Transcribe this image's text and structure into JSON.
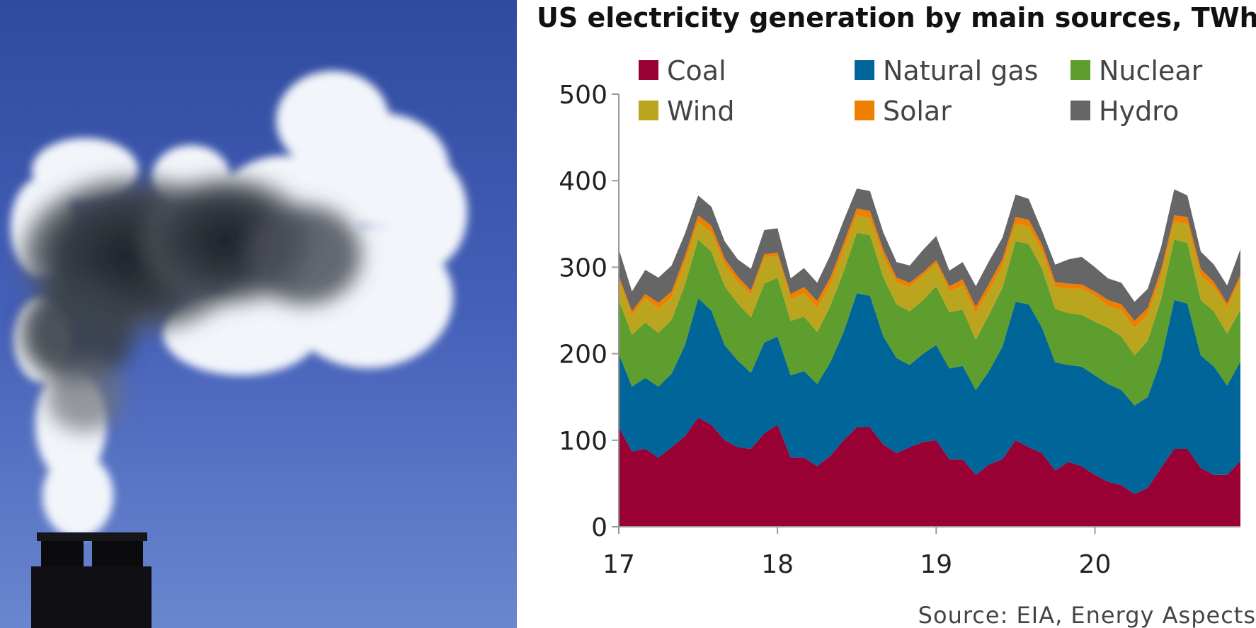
{
  "photo": {
    "icon": "smokestack-emissions-photo"
  },
  "chart_data": {
    "type": "area",
    "stacked": true,
    "title": "US electricity generation by main sources, TWh",
    "source": "Source: EIA, Energy Aspects",
    "xlabel": "",
    "ylabel": "",
    "ylim": [
      0,
      500
    ],
    "yticks": [
      0,
      100,
      200,
      300,
      400,
      500
    ],
    "xlim": [
      17,
      20.917
    ],
    "xticks": [
      {
        "value": 17,
        "label": "17"
      },
      {
        "value": 18,
        "label": "18"
      },
      {
        "value": 19,
        "label": "19"
      },
      {
        "value": 20,
        "label": "20"
      }
    ],
    "legend_position": "top",
    "x": [
      17.0,
      17.083,
      17.167,
      17.25,
      17.333,
      17.417,
      17.5,
      17.583,
      17.667,
      17.75,
      17.833,
      17.917,
      18.0,
      18.083,
      18.167,
      18.25,
      18.333,
      18.417,
      18.5,
      18.583,
      18.667,
      18.75,
      18.833,
      18.917,
      19.0,
      19.083,
      19.167,
      19.25,
      19.333,
      19.417,
      19.5,
      19.583,
      19.667,
      19.75,
      19.833,
      19.917,
      20.0,
      20.083,
      20.167,
      20.25,
      20.333,
      20.417,
      20.5,
      20.583,
      20.667,
      20.75,
      20.833,
      20.917
    ],
    "series": [
      {
        "name": "Coal",
        "color": "#990033",
        "values": [
          115,
          87,
          90,
          80,
          92,
          105,
          126,
          118,
          100,
          92,
          90,
          108,
          118,
          80,
          80,
          70,
          82,
          100,
          115,
          115,
          95,
          85,
          92,
          98,
          100,
          78,
          78,
          60,
          72,
          78,
          100,
          92,
          85,
          65,
          75,
          70,
          60,
          52,
          48,
          38,
          45,
          68,
          90,
          90,
          68,
          60,
          60,
          76
        ]
      },
      {
        "name": "Natural gas",
        "color": "#006699",
        "values": [
          85,
          75,
          82,
          82,
          85,
          105,
          138,
          132,
          110,
          100,
          88,
          105,
          102,
          95,
          100,
          95,
          108,
          125,
          155,
          152,
          125,
          110,
          95,
          102,
          110,
          105,
          108,
          98,
          108,
          130,
          160,
          165,
          145,
          125,
          112,
          115,
          115,
          113,
          110,
          102,
          105,
          125,
          172,
          168,
          130,
          125,
          103,
          115
        ]
      },
      {
        "name": "Nuclear",
        "color": "#5e9e2e",
        "values": [
          62,
          60,
          64,
          62,
          62,
          70,
          68,
          68,
          68,
          66,
          64,
          68,
          68,
          63,
          63,
          60,
          65,
          70,
          70,
          70,
          68,
          62,
          62,
          62,
          68,
          65,
          65,
          58,
          65,
          68,
          70,
          70,
          68,
          62,
          60,
          60,
          62,
          65,
          62,
          58,
          65,
          70,
          70,
          70,
          64,
          64,
          60,
          60
        ]
      },
      {
        "name": "Wind",
        "color": "#bca51e",
        "values": [
          24,
          22,
          28,
          28,
          26,
          25,
          20,
          22,
          25,
          25,
          26,
          30,
          25,
          25,
          27,
          28,
          25,
          25,
          20,
          20,
          24,
          25,
          28,
          28,
          26,
          24,
          28,
          30,
          28,
          25,
          20,
          20,
          20,
          25,
          28,
          30,
          30,
          25,
          30,
          32,
          30,
          26,
          20,
          22,
          28,
          28,
          30,
          35
        ]
      },
      {
        "name": "Solar",
        "color": "#ee7f00",
        "values": [
          4,
          5,
          5,
          7,
          7,
          8,
          8,
          8,
          7,
          6,
          5,
          4,
          4,
          6,
          7,
          8,
          8,
          8,
          8,
          8,
          8,
          6,
          5,
          4,
          4,
          6,
          7,
          8,
          8,
          8,
          8,
          8,
          8,
          6,
          6,
          5,
          5,
          7,
          7,
          8,
          8,
          8,
          8,
          8,
          8,
          6,
          5,
          5
        ]
      },
      {
        "name": "Hydro",
        "color": "#666666",
        "values": [
          31,
          23,
          28,
          29,
          30,
          26,
          23,
          22,
          20,
          20,
          25,
          28,
          28,
          18,
          22,
          21,
          26,
          26,
          23,
          23,
          20,
          18,
          20,
          26,
          28,
          18,
          20,
          24,
          26,
          25,
          26,
          24,
          16,
          20,
          28,
          32,
          28,
          25,
          25,
          22,
          22,
          26,
          30,
          25,
          20,
          20,
          21,
          30
        ]
      }
    ]
  }
}
